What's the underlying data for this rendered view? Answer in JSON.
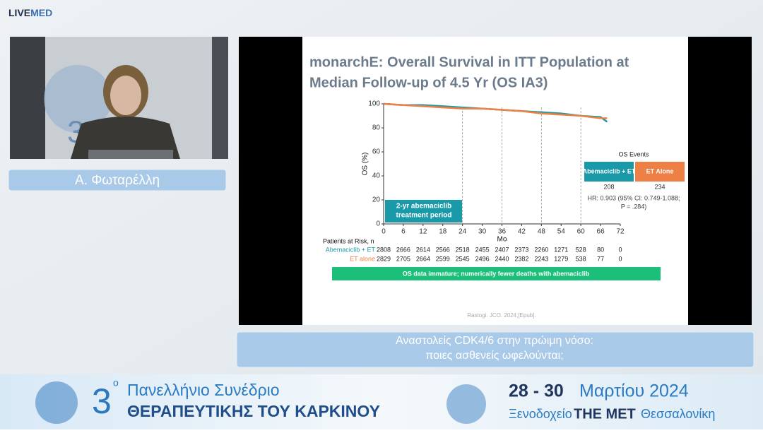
{
  "header": {
    "logo_live": "LIVE",
    "logo_med": "MED"
  },
  "speaker": {
    "name": "Α. Φωταρέλλη"
  },
  "slide": {
    "title_lines": [
      "monarchE: Overall Survival in ITT Population at",
      "Median Follow-up of 4.5 Yr (OS IA3)"
    ],
    "chart": {
      "type": "line",
      "ylabel": "OS (%)",
      "xlabel": "Mo",
      "xlim": [
        0,
        72
      ],
      "ylim": [
        0,
        100
      ],
      "xticks": [
        0,
        6,
        12,
        18,
        24,
        30,
        36,
        42,
        48,
        54,
        60,
        66,
        72
      ],
      "yticks": [
        0,
        20,
        40,
        60,
        80,
        100
      ],
      "vlines": [
        24,
        36,
        48,
        60
      ],
      "x": [
        0,
        6,
        12,
        18,
        24,
        30,
        36,
        42,
        48,
        54,
        60,
        66,
        68
      ],
      "series": [
        {
          "name": "Abemaciclib + ET",
          "color": "#1a9aa8",
          "events": 208,
          "values": [
            100,
            99,
            99,
            98,
            97,
            96,
            95,
            94,
            93,
            92,
            90,
            89,
            85
          ]
        },
        {
          "name": "ET Alone",
          "color": "#ee7f45",
          "events": 234,
          "values": [
            100,
            99,
            98,
            97,
            96,
            96,
            95,
            94,
            92,
            91,
            90,
            88,
            88
          ]
        }
      ],
      "legend_title": "OS Events",
      "annotation_lines": [
        "2-yr abemaciclib",
        "treatment period"
      ],
      "hr_lines": [
        "HR: 0.903 (95% CI: 0.749-1.088;",
        "P = .284)"
      ]
    },
    "risk_table": {
      "title": "Patients at Risk, n",
      "rows": [
        {
          "label": "Abemaciclib + ET",
          "counts": [
            2808,
            2666,
            2614,
            2566,
            2518,
            2455,
            2407,
            2373,
            2260,
            1271,
            528,
            80,
            0
          ]
        },
        {
          "label": "ET alone",
          "counts": [
            2829,
            2705,
            2664,
            2599,
            2545,
            2496,
            2440,
            2382,
            2243,
            1279,
            538,
            77,
            0
          ]
        }
      ]
    },
    "banner": "OS data immature; numerically fewer deaths with abemaciclib",
    "citation": "Rastogi. JCO. 2024;[Epub]."
  },
  "caption": {
    "lines": [
      "Αναστολείς CDK4/6 στην πρώιμη νόσο:",
      "ποιες ασθενείς ωφελούνται;"
    ]
  },
  "footer": {
    "edition": "3",
    "edition_sup": "ο",
    "line1": "Πανελλήνιο Συνέδριο",
    "line2": "ΘΕΡΑΠΕΥΤΙΚΗΣ ΤΟΥ ΚΑΡΚΙΝΟΥ",
    "dates": "28 - 30",
    "month_year": "Μαρτίου 2024",
    "venue_prefix": "Ξενοδοχείο",
    "venue": "THE MET",
    "city": "Θεσσαλονίκη"
  }
}
